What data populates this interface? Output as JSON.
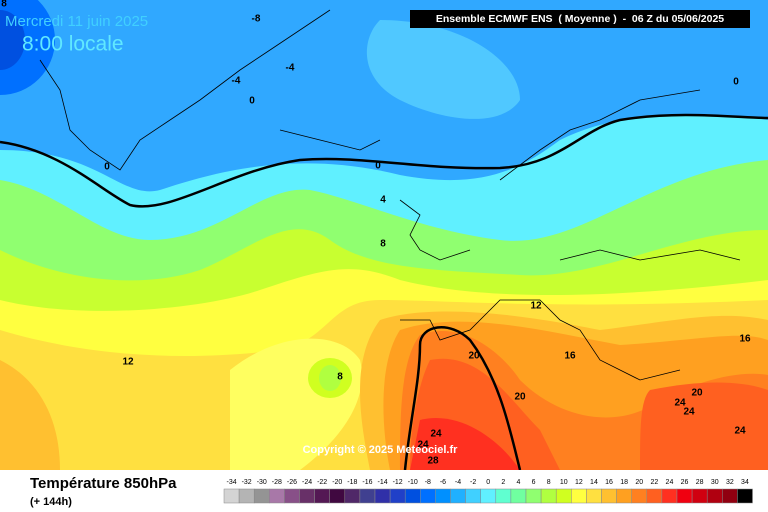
{
  "header": {
    "date": "Mercredi 11 juin 2025",
    "time": "8:00 locale",
    "model": "Ensemble ECMWF ENS  ( Moyenne )  -  06 Z du 05/06/2025"
  },
  "map": {
    "contour_labels": [
      8,
      -8,
      -4,
      -4,
      0,
      0,
      0,
      0,
      4,
      8,
      12,
      12,
      8,
      16,
      16,
      20,
      20,
      20,
      24,
      24,
      24,
      24,
      24,
      28
    ],
    "copyright": "Copyright © 2025 Meteociel.fr"
  },
  "legend": {
    "title": "Température 850hPa",
    "subtitle": "(+ 144h)",
    "scale": [
      {
        "value": -34,
        "color": "#d4d4d4"
      },
      {
        "value": -32,
        "color": "#b4b4b4"
      },
      {
        "value": -30,
        "color": "#949494"
      },
      {
        "value": -28,
        "color": "#a878a8"
      },
      {
        "value": -26,
        "color": "#885088"
      },
      {
        "value": -24,
        "color": "#683068"
      },
      {
        "value": -22,
        "color": "#541854"
      },
      {
        "value": -20,
        "color": "#400840"
      },
      {
        "value": -18,
        "color": "#502868"
      },
      {
        "value": -16,
        "color": "#404090"
      },
      {
        "value": -14,
        "color": "#3030a8"
      },
      {
        "value": -12,
        "color": "#2040c8"
      },
      {
        "value": -10,
        "color": "#0050e0"
      },
      {
        "value": -8,
        "color": "#0070ff"
      },
      {
        "value": -6,
        "color": "#0090ff"
      },
      {
        "value": -4,
        "color": "#20b0ff"
      },
      {
        "value": -2,
        "color": "#40d0ff"
      },
      {
        "value": 0,
        "color": "#60f0ff"
      },
      {
        "value": 2,
        "color": "#60ffd0"
      },
      {
        "value": 4,
        "color": "#70ffa0"
      },
      {
        "value": 6,
        "color": "#90ff70"
      },
      {
        "value": 8,
        "color": "#b0ff40"
      },
      {
        "value": 10,
        "color": "#d0ff20"
      },
      {
        "value": 12,
        "color": "#ffff40"
      },
      {
        "value": 14,
        "color": "#ffe040"
      },
      {
        "value": 16,
        "color": "#ffc030"
      },
      {
        "value": 18,
        "color": "#ffa020"
      },
      {
        "value": 20,
        "color": "#ff8020"
      },
      {
        "value": 22,
        "color": "#ff6020"
      },
      {
        "value": 24,
        "color": "#ff3020"
      },
      {
        "value": 26,
        "color": "#f00010"
      },
      {
        "value": 28,
        "color": "#d00010"
      },
      {
        "value": 30,
        "color": "#b00010"
      },
      {
        "value": 32,
        "color": "#900010"
      },
      {
        "value": 34,
        "color": "#000000"
      }
    ]
  }
}
